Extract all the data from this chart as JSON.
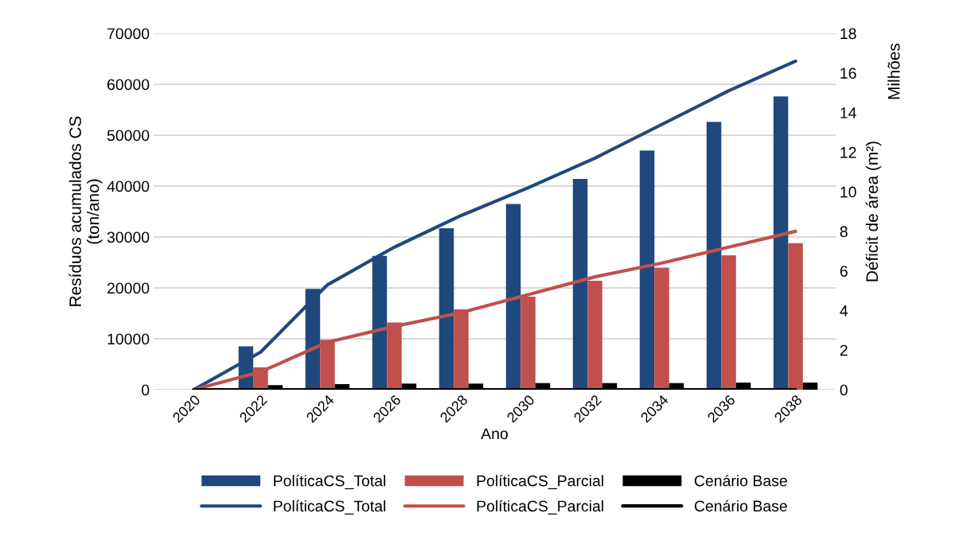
{
  "chart_data": {
    "type": "bar",
    "xlabel": "Ano",
    "ylabel": "Resíduos acumulados CS\n(ton/ano)",
    "y2label": "Déficit de área (m²)",
    "annotations": [
      "Milhões"
    ],
    "categories": [
      "2020",
      "2022",
      "2024",
      "2026",
      "2028",
      "2030",
      "2032",
      "2034",
      "2036",
      "2038"
    ],
    "series": [
      {
        "name": "PolíticaCS_Total",
        "color": "#1f497d",
        "values": [
          0,
          8500,
          19800,
          26300,
          31700,
          36500,
          41400,
          47000,
          52600,
          57600
        ]
      },
      {
        "name": "PolíticaCS_Parcial",
        "color": "#c0504d",
        "values": [
          0,
          4400,
          9800,
          13200,
          15800,
          18300,
          21400,
          24000,
          26400,
          28800
        ]
      },
      {
        "name": "Cenário Base",
        "color": "#000000",
        "values": [
          0,
          900,
          1100,
          1200,
          1200,
          1300,
          1300,
          1300,
          1400,
          1400
        ]
      },
      {
        "name": "PolíticaCS_Total",
        "type": "line",
        "axis": "y2",
        "color": "#1f497d",
        "values": [
          0,
          1.9,
          5.3,
          7.2,
          8.8,
          10.2,
          11.7,
          13.4,
          15.1,
          16.6
        ]
      },
      {
        "name": "PolíticaCS_Parcial",
        "type": "line",
        "axis": "y2",
        "color": "#c0504d",
        "values": [
          0,
          0.9,
          2.4,
          3.2,
          3.9,
          4.8,
          5.7,
          6.4,
          7.2,
          8.0
        ]
      },
      {
        "name": "Cenário Base",
        "type": "line",
        "axis": "y2",
        "color": "#000000",
        "values": [
          0,
          0,
          0,
          0,
          0,
          0,
          0,
          0,
          0,
          0
        ]
      }
    ],
    "ylim": [
      0,
      70000
    ],
    "yticks": [
      0,
      10000,
      20000,
      30000,
      40000,
      50000,
      60000,
      70000
    ],
    "y2lim": [
      0,
      18
    ],
    "y2ticks": [
      0,
      2,
      4,
      6,
      8,
      10,
      12,
      14,
      16,
      18
    ],
    "grid": "y",
    "legend": "bottom",
    "marker": "none",
    "line_style": "solid"
  }
}
